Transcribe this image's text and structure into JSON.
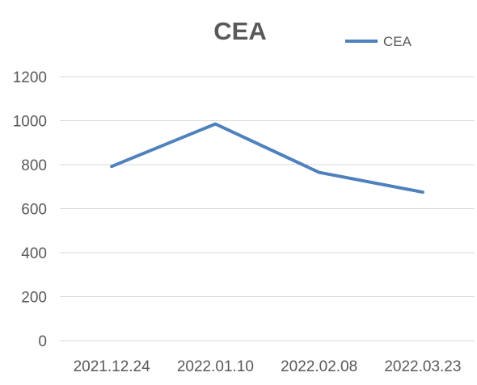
{
  "chart_data": {
    "type": "line",
    "title": "CEA",
    "categories": [
      "2021.12.24",
      "2022.01.10",
      "2022.02.08",
      "2022.03.23"
    ],
    "series": [
      {
        "name": "CEA",
        "values": [
          792,
          985,
          765,
          675
        ],
        "color": "#4f81bd"
      }
    ],
    "ylim": [
      0,
      1200
    ],
    "yticks": [
      0,
      200,
      400,
      600,
      800,
      1000,
      1200
    ],
    "grid": true,
    "legend": "top-right"
  }
}
